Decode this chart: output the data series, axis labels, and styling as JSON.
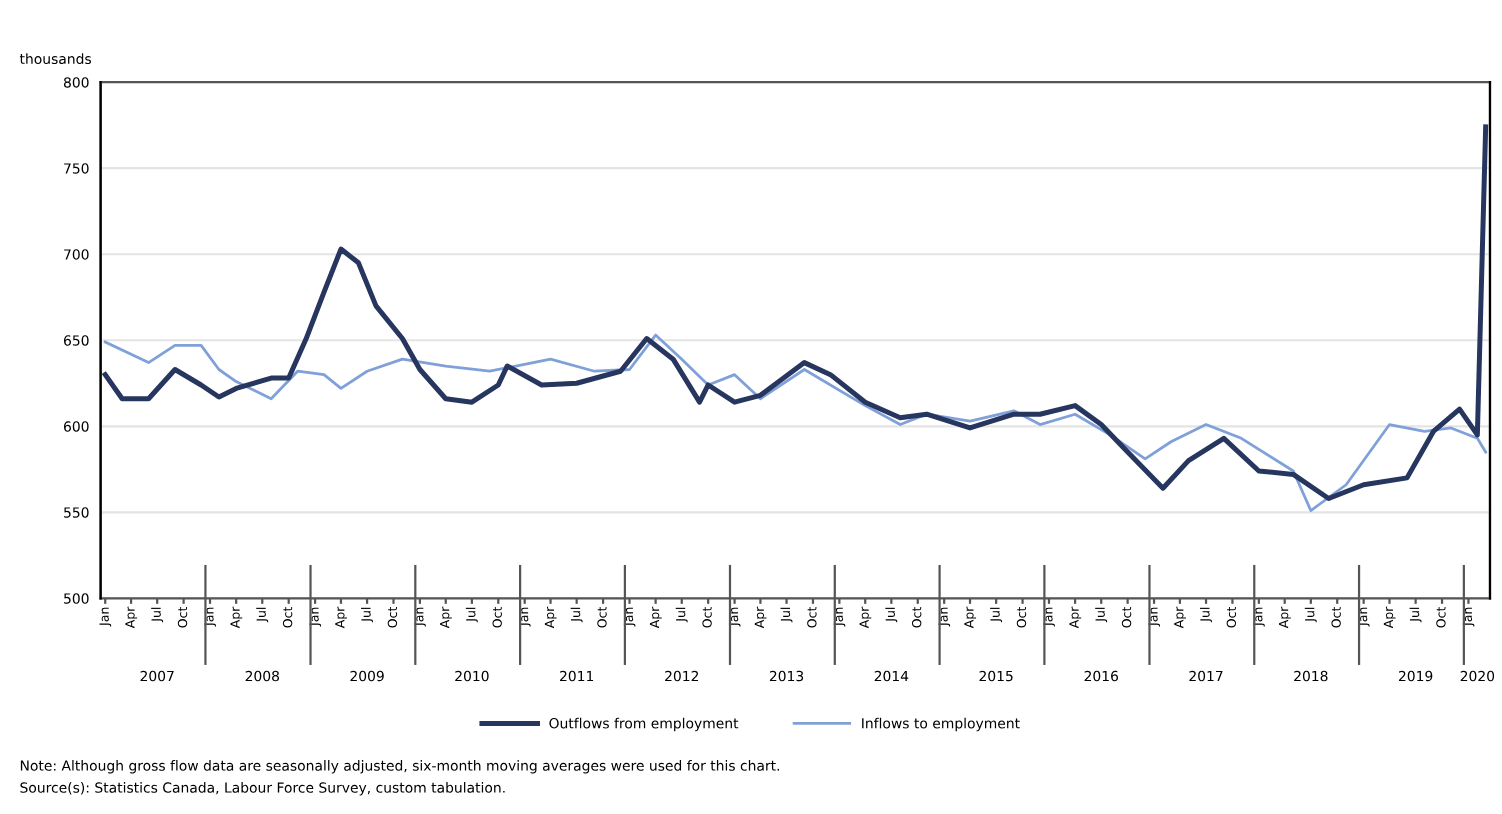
{
  "chart_data": {
    "type": "line",
    "ylabel": "thousands",
    "series": [
      {
        "name": "Outflows from employment",
        "color": "#27365f",
        "x": [
          "2007-01",
          "2007-03",
          "2007-06",
          "2007-09",
          "2007-12",
          "2008-02",
          "2008-04",
          "2008-08",
          "2008-10",
          "2008-12",
          "2009-02",
          "2009-04",
          "2009-06",
          "2009-08",
          "2009-11",
          "2010-01",
          "2010-04",
          "2010-07",
          "2010-10",
          "2010-11",
          "2011-03",
          "2011-07",
          "2011-12",
          "2012-03",
          "2012-06",
          "2012-09",
          "2012-10",
          "2013-01",
          "2013-04",
          "2013-09",
          "2013-12",
          "2014-04",
          "2014-08",
          "2014-11",
          "2015-04",
          "2015-09",
          "2015-12",
          "2016-04",
          "2016-07",
          "2016-10",
          "2017-02",
          "2017-05",
          "2017-09",
          "2018-01",
          "2018-05",
          "2018-09",
          "2019-01",
          "2019-06",
          "2019-09",
          "2019-12",
          "2020-02",
          "2020-03"
        ],
        "values": [
          630,
          616,
          616,
          633,
          624,
          617,
          622,
          628,
          628,
          651,
          678,
          703,
          695,
          670,
          651,
          633,
          616,
          614,
          624,
          635,
          624,
          625,
          632,
          651,
          639,
          614,
          624,
          614,
          618,
          637,
          630,
          614,
          605,
          607,
          599,
          607,
          607,
          612,
          601,
          585,
          564,
          580,
          593,
          574,
          572,
          558,
          566,
          570,
          597,
          610,
          595,
          774
        ]
      },
      {
        "name": "Inflows to employment",
        "color": "#7fa0d8",
        "x": [
          "2007-01",
          "2007-06",
          "2007-09",
          "2007-12",
          "2008-02",
          "2008-04",
          "2008-08",
          "2008-11",
          "2009-02",
          "2009-04",
          "2009-07",
          "2009-11",
          "2010-04",
          "2010-09",
          "2010-12",
          "2011-04",
          "2011-09",
          "2012-01",
          "2012-04",
          "2012-07",
          "2012-10",
          "2013-01",
          "2013-04",
          "2013-09",
          "2014-04",
          "2014-08",
          "2014-11",
          "2015-04",
          "2015-09",
          "2015-12",
          "2016-04",
          "2016-08",
          "2016-12",
          "2017-03",
          "2017-07",
          "2017-11",
          "2018-05",
          "2018-07",
          "2018-11",
          "2019-04",
          "2019-08",
          "2019-11",
          "2020-02",
          "2020-03"
        ],
        "values": [
          649,
          637,
          647,
          647,
          633,
          626,
          616,
          632,
          630,
          622,
          632,
          639,
          635,
          632,
          635,
          639,
          632,
          633,
          653,
          639,
          624,
          630,
          616,
          633,
          612,
          601,
          607,
          603,
          609,
          601,
          607,
          595,
          581,
          591,
          601,
          593,
          574,
          551,
          566,
          601,
          597,
          599,
          593,
          585
        ]
      }
    ],
    "ylim": [
      500,
      800
    ],
    "yticks": [
      500,
      550,
      600,
      650,
      700,
      750,
      800
    ],
    "xlim": [
      "2006-12-16",
      "2020-03-16"
    ],
    "xticks": [
      {
        "value": "2007-01",
        "label": "Jan"
      },
      {
        "value": "2007-04",
        "label": "Apr"
      },
      {
        "value": "2007-07",
        "label": "Jul"
      },
      {
        "value": "2007-10",
        "label": "Oct"
      },
      {
        "value": "2008-01",
        "label": "Jan"
      },
      {
        "value": "2008-04",
        "label": "Apr"
      },
      {
        "value": "2008-07",
        "label": "Jul"
      },
      {
        "value": "2008-10",
        "label": "Oct"
      },
      {
        "value": "2009-01",
        "label": "Jan"
      },
      {
        "value": "2009-04",
        "label": "Apr"
      },
      {
        "value": "2009-07",
        "label": "Jul"
      },
      {
        "value": "2009-10",
        "label": "Oct"
      },
      {
        "value": "2010-01",
        "label": "Jan"
      },
      {
        "value": "2010-04",
        "label": "Apr"
      },
      {
        "value": "2010-07",
        "label": "Jul"
      },
      {
        "value": "2010-10",
        "label": "Oct"
      },
      {
        "value": "2011-01",
        "label": "Jan"
      },
      {
        "value": "2011-04",
        "label": "Apr"
      },
      {
        "value": "2011-07",
        "label": "Jul"
      },
      {
        "value": "2011-10",
        "label": "Oct"
      },
      {
        "value": "2012-01",
        "label": "Jan"
      },
      {
        "value": "2012-04",
        "label": "Apr"
      },
      {
        "value": "2012-07",
        "label": "Jul"
      },
      {
        "value": "2012-10",
        "label": "Oct"
      },
      {
        "value": "2013-01",
        "label": "Jan"
      },
      {
        "value": "2013-04",
        "label": "Apr"
      },
      {
        "value": "2013-07",
        "label": "Jul"
      },
      {
        "value": "2013-10",
        "label": "Oct"
      },
      {
        "value": "2014-01",
        "label": "Jan"
      },
      {
        "value": "2014-04",
        "label": "Apr"
      },
      {
        "value": "2014-07",
        "label": "Jul"
      },
      {
        "value": "2014-10",
        "label": "Oct"
      },
      {
        "value": "2015-01",
        "label": "Jan"
      },
      {
        "value": "2015-04",
        "label": "Apr"
      },
      {
        "value": "2015-07",
        "label": "Jul"
      },
      {
        "value": "2015-10",
        "label": "Oct"
      },
      {
        "value": "2016-01",
        "label": "Jan"
      },
      {
        "value": "2016-04",
        "label": "Apr"
      },
      {
        "value": "2016-07",
        "label": "Jul"
      },
      {
        "value": "2016-10",
        "label": "Oct"
      },
      {
        "value": "2017-01",
        "label": "Jan"
      },
      {
        "value": "2017-04",
        "label": "Apr"
      },
      {
        "value": "2017-07",
        "label": "Jul"
      },
      {
        "value": "2017-10",
        "label": "Oct"
      },
      {
        "value": "2018-01",
        "label": "Jan"
      },
      {
        "value": "2018-04",
        "label": "Apr"
      },
      {
        "value": "2018-07",
        "label": "Jul"
      },
      {
        "value": "2018-10",
        "label": "Oct"
      },
      {
        "value": "2019-01",
        "label": "Jan"
      },
      {
        "value": "2019-04",
        "label": "Apr"
      },
      {
        "value": "2019-07",
        "label": "Jul"
      },
      {
        "value": "2019-10",
        "label": "Oct"
      },
      {
        "value": "2020-01",
        "label": "Jan"
      }
    ],
    "x2lim": [
      "2006-12-16",
      "2020-03-16"
    ],
    "x2ticks": [
      {
        "value": "2007-07",
        "label": "2007"
      },
      {
        "value": "2007-12-16",
        "label": null
      },
      {
        "value": "2008-07",
        "label": "2008"
      },
      {
        "value": "2008-12-16",
        "label": null
      },
      {
        "value": "2009-07",
        "label": "2009"
      },
      {
        "value": "2009-12-16",
        "label": null
      },
      {
        "value": "2010-07",
        "label": "2010"
      },
      {
        "value": "2010-12-16",
        "label": null
      },
      {
        "value": "2011-07",
        "label": "2011"
      },
      {
        "value": "2011-12-16",
        "label": null
      },
      {
        "value": "2012-07",
        "label": "2012"
      },
      {
        "value": "2012-12-16",
        "label": null
      },
      {
        "value": "2013-07",
        "label": "2013"
      },
      {
        "value": "2013-12-16",
        "label": null
      },
      {
        "value": "2014-07",
        "label": "2014"
      },
      {
        "value": "2014-12-16",
        "label": null
      },
      {
        "value": "2015-07",
        "label": "2015"
      },
      {
        "value": "2015-12-16",
        "label": null
      },
      {
        "value": "2016-07",
        "label": "2016"
      },
      {
        "value": "2016-12-16",
        "label": null
      },
      {
        "value": "2017-07",
        "label": "2017"
      },
      {
        "value": "2017-12-16",
        "label": null
      },
      {
        "value": "2018-07",
        "label": "2018"
      },
      {
        "value": "2018-12-16",
        "label": null
      },
      {
        "value": "2019-07",
        "label": "2019"
      },
      {
        "value": "2019-12-16",
        "label": null
      },
      {
        "value": "2020-02",
        "label": "2020"
      }
    ],
    "grid": "y",
    "legend": "bottom",
    "marker": "none",
    "line_style": "solid",
    "annotations": [
      "Note: Although gross flow data are seasonally adjusted, six-month moving averages were used for this chart.",
      "Source(s): Statistics Canada, Labour Force Survey, custom tabulation."
    ]
  }
}
